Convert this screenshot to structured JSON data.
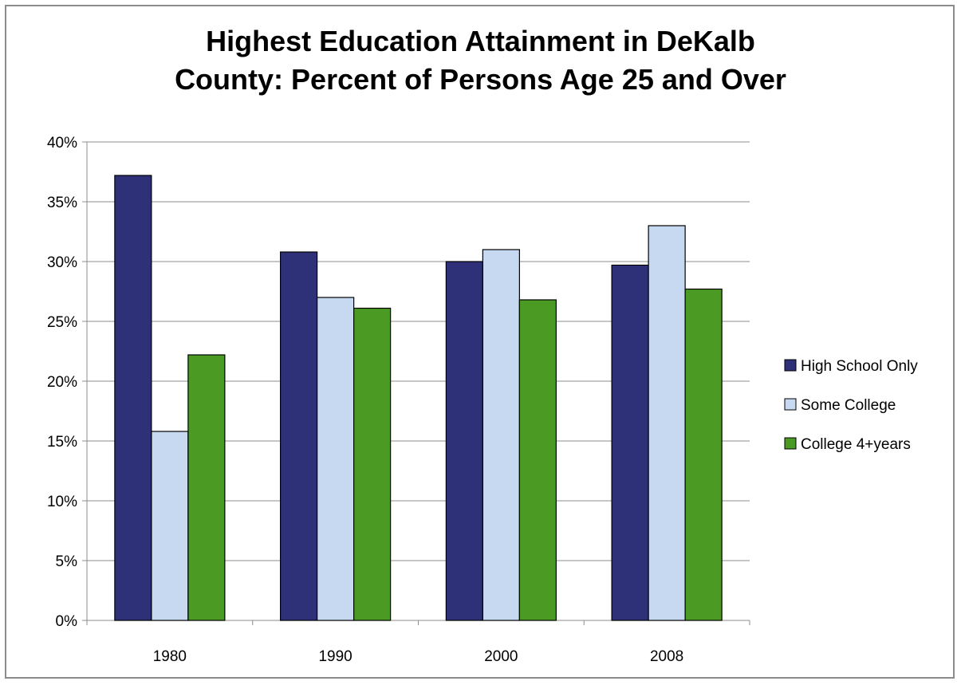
{
  "chart_data": {
    "type": "bar",
    "title_line1": "Highest Education Attainment in DeKalb",
    "title_line2": "County: Percent of Persons Age 25 and Over",
    "categories": [
      "1980",
      "1990",
      "2000",
      "2008"
    ],
    "series": [
      {
        "name": "High School Only",
        "color": "#2f3178",
        "values": [
          37.2,
          30.8,
          30.0,
          29.7
        ]
      },
      {
        "name": "Some College",
        "color": "#c6d9f0",
        "values": [
          15.8,
          27.0,
          31.0,
          33.0
        ]
      },
      {
        "name": "College 4+years",
        "color": "#4a9a24",
        "values": [
          22.2,
          26.1,
          26.8,
          27.7
        ]
      }
    ],
    "ylim": [
      0,
      40
    ],
    "yticks": [
      "0%",
      "5%",
      "10%",
      "15%",
      "20%",
      "25%",
      "30%",
      "35%",
      "40%"
    ],
    "grid": true,
    "legend_position": "right"
  }
}
